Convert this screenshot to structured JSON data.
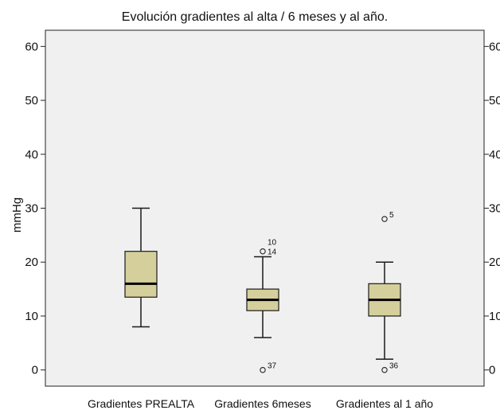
{
  "chart_data": {
    "type": "boxplot",
    "title": "Evolución gradientes al alta / 6 meses y al año.",
    "ylabel": "mmHg",
    "ylim": [
      -3,
      63
    ],
    "yticks": [
      0,
      10,
      20,
      30,
      40,
      50,
      60
    ],
    "grid": false,
    "categories": [
      "Gradientes PREALTA",
      "Gradientes 6meses",
      "Gradientes al 1 año"
    ],
    "boxes": [
      {
        "category": "Gradientes PREALTA",
        "whisker_low": 8,
        "q1": 13.5,
        "median": 16,
        "q3": 22,
        "whisker_high": 30,
        "outliers": []
      },
      {
        "category": "Gradientes 6meses",
        "whisker_low": 6,
        "q1": 11,
        "median": 13,
        "q3": 15,
        "whisker_high": 21,
        "outliers": [
          {
            "value": 22,
            "labels": [
              "10",
              "14"
            ]
          },
          {
            "value": 0,
            "labels": [
              "37"
            ]
          }
        ]
      },
      {
        "category": "Gradientes al 1 año",
        "whisker_low": 2,
        "q1": 10,
        "median": 13,
        "q3": 16,
        "whisker_high": 20,
        "outliers": [
          {
            "value": 28,
            "labels": [
              "5"
            ]
          },
          {
            "value": 0,
            "labels": [
              "36"
            ]
          }
        ]
      }
    ],
    "colors": {
      "box_fill": "#d5cf9c",
      "plot_background": "#f0f0f0",
      "line": "#1a1a1a"
    }
  }
}
